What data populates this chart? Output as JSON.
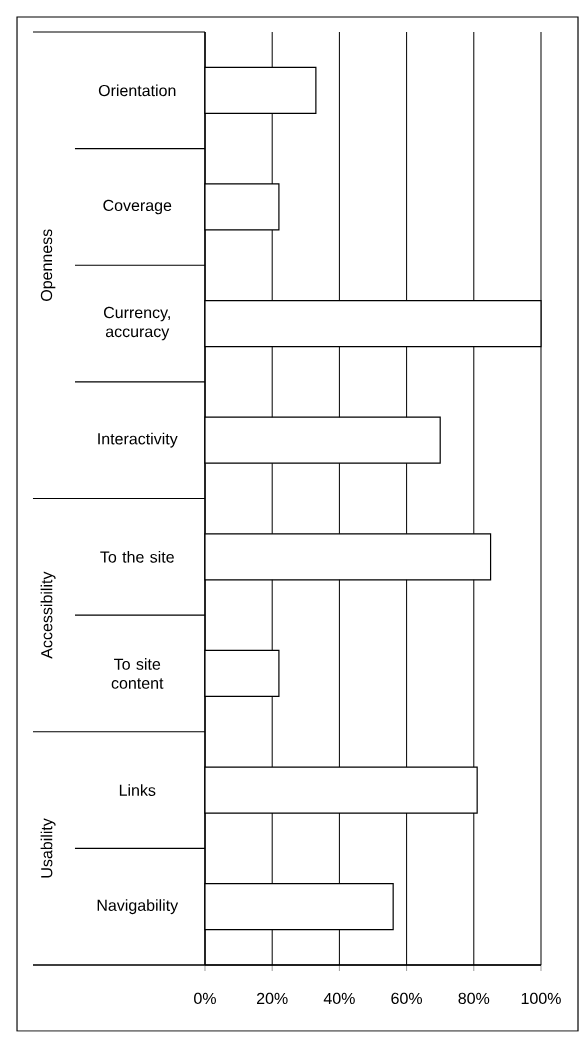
{
  "chart_data": {
    "type": "bar",
    "orientation": "horizontal",
    "color": "#ffffff",
    "categories": [
      "Orientation",
      "Coverage",
      "Currency, accuracy",
      "Interactivity",
      "To the site",
      "To site content",
      "Links",
      "Navigability"
    ],
    "values": [
      33,
      22,
      100,
      70,
      85,
      22,
      81,
      56
    ],
    "xlim": [
      0,
      100
    ],
    "xticks": [
      {
        "value": 0,
        "label": "0%"
      },
      {
        "value": 20,
        "label": "20%"
      },
      {
        "value": 40,
        "label": "40%"
      },
      {
        "value": 60,
        "label": "60%"
      },
      {
        "value": 80,
        "label": "80%"
      },
      {
        "value": 100,
        "label": "100%"
      }
    ],
    "grid": "x",
    "annotations": [
      "Openness",
      "Accessibility",
      "Usability"
    ]
  }
}
